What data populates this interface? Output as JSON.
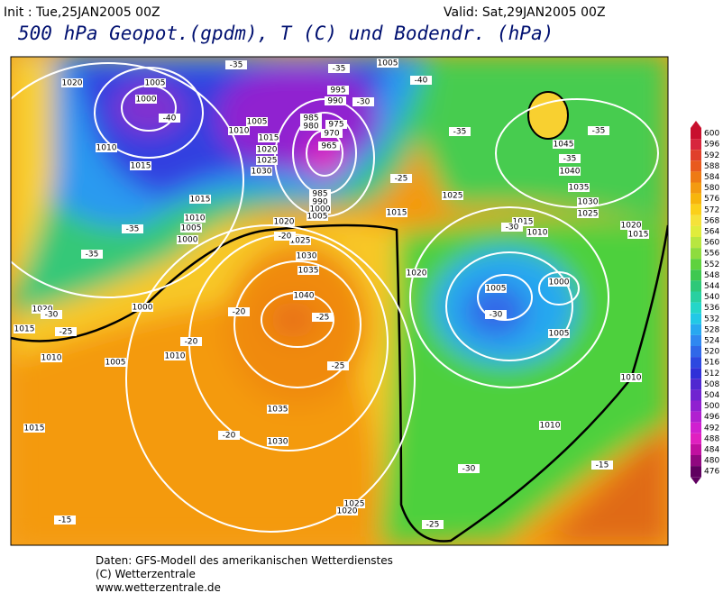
{
  "header": {
    "init": "Init : Tue,25JAN2005 00Z",
    "valid": "Valid: Sat,29JAN2005 00Z",
    "title": "500 hPa Geopot.(gpdm), T (C) und Bodendr. (hPa)"
  },
  "pressure_labels": [
    1005,
    1020,
    1005,
    1000,
    995,
    990,
    985,
    980,
    975,
    970,
    965,
    1005,
    1010,
    1015,
    1020,
    1025,
    1030,
    1010,
    1015,
    1015,
    1010,
    1005,
    1000,
    1020,
    1025,
    1030,
    1035,
    1040,
    1035,
    1030,
    1025,
    1020,
    985,
    990,
    1000,
    1005,
    1015,
    1025,
    1020,
    1015,
    1010,
    1005,
    1000,
    1005,
    1010,
    1045,
    1040,
    1035,
    1030,
    1025,
    1020,
    1015,
    1010,
    1020,
    1015,
    1010,
    1005,
    1010,
    1000,
    1015
  ],
  "temperature_labels": [
    -35,
    -35,
    -40,
    -30,
    -40,
    -35,
    -35,
    -35,
    -25,
    -35,
    -35,
    -30,
    -30,
    -25,
    -20,
    -25,
    -20,
    -20,
    -25,
    -20,
    -30,
    -25,
    -15,
    -15,
    -30
  ],
  "colorbar": {
    "values": [
      600,
      596,
      592,
      588,
      584,
      580,
      576,
      572,
      568,
      564,
      560,
      556,
      552,
      548,
      544,
      540,
      536,
      532,
      528,
      524,
      520,
      516,
      512,
      508,
      504,
      500,
      496,
      492,
      488,
      484,
      480,
      476
    ],
    "colors": [
      "#c8102e",
      "#d7263d",
      "#e0402a",
      "#e85a1e",
      "#ee7a14",
      "#f39a10",
      "#f7b50c",
      "#fbd01a",
      "#f5e23a",
      "#e0ec3c",
      "#b8e640",
      "#8edc3e",
      "#5ed23e",
      "#3ec850",
      "#2ec878",
      "#28d0a0",
      "#24d6c8",
      "#22c8e6",
      "#28a8f0",
      "#3088f0",
      "#3068e8",
      "#2c48e0",
      "#3030d8",
      "#5028d0",
      "#7024d0",
      "#9020d0",
      "#b020d0",
      "#d020d0",
      "#e020c0",
      "#c010a0",
      "#900880",
      "#600060"
    ]
  },
  "footer": [
    "Daten: GFS-Modell des amerikanischen Wetterdienstes",
    "(C) Wetterzentrale",
    "www.wetterzentrale.de"
  ]
}
